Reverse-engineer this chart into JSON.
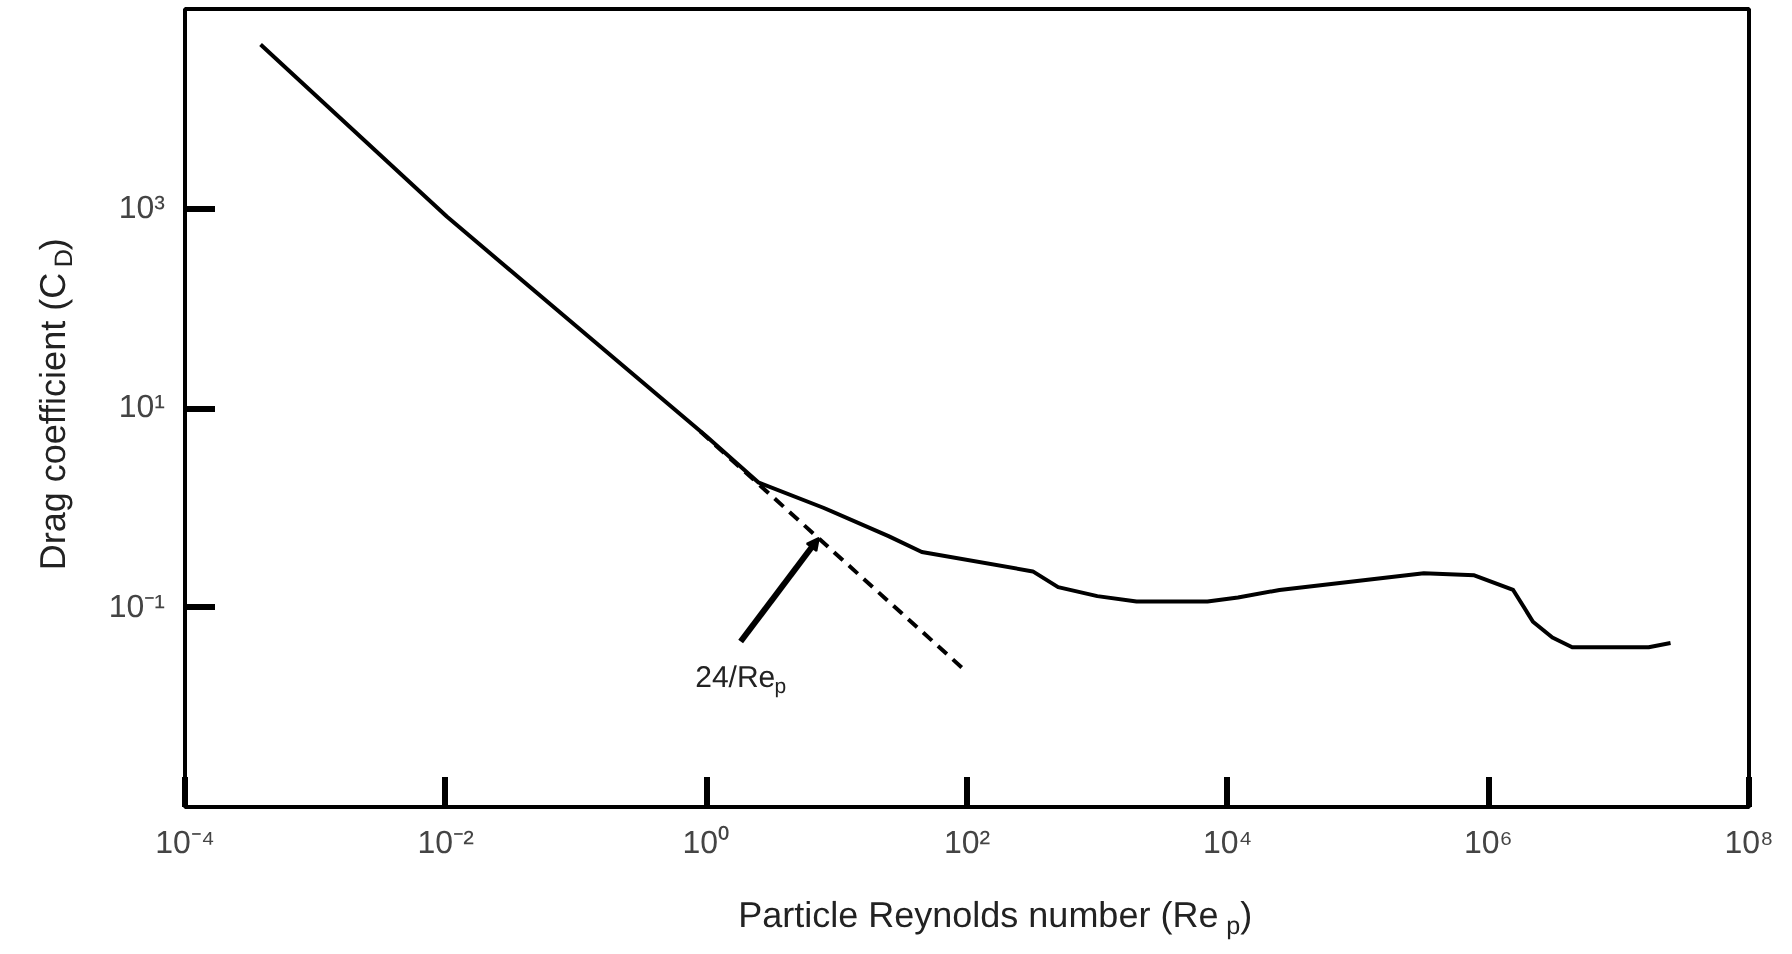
{
  "chart_data": {
    "type": "line",
    "xlabel": "Particle Reynolds number (Re$_{p}$)",
    "ylabel": "Drag coefficient (C$_{D}$)",
    "log": "xy",
    "grid": false,
    "xlim": [
      0.0001,
      100000000
    ],
    "ylim": [
      0.001,
      100000
    ],
    "xticks": [
      {
        "value": 0.0001,
        "label": "10⁻⁴"
      },
      {
        "value": 0.01,
        "label": "10⁻²"
      },
      {
        "value": 1,
        "label": "10⁰"
      },
      {
        "value": 100,
        "label": "10²"
      },
      {
        "value": 10000,
        "label": "10⁴"
      },
      {
        "value": 1000000,
        "label": "10⁶"
      },
      {
        "value": 100000000,
        "label": "10⁸"
      }
    ],
    "yticks": [
      {
        "value": 0.1,
        "label": "10⁻¹"
      },
      {
        "value": 10,
        "label": "10¹"
      },
      {
        "value": 1000,
        "label": "10³"
      }
    ],
    "series": [
      {
        "color": "#000000",
        "line_style": "solid",
        "x": [
          0.00038,
          0.0102,
          1,
          2.5,
          7.9,
          25,
          45,
          320,
          500,
          1000,
          2000,
          7000,
          12000,
          25000,
          320000,
          780000,
          1550000,
          2200000,
          3100000,
          4400000,
          17000000,
          25000000
        ],
        "values": [
          44000,
          830,
          5.2,
          1.8,
          1,
          0.52,
          0.36,
          0.23,
          0.16,
          0.13,
          0.115,
          0.115,
          0.126,
          0.15,
          0.22,
          0.21,
          0.15,
          0.072,
          0.05,
          0.04,
          0.04,
          0.044
        ]
      },
      {
        "color": "#000000",
        "line_style": "dashed",
        "x": [
          0.9,
          98
        ],
        "values": [
          5.8,
          0.023
        ]
      }
    ],
    "annotations": [
      {
        "text": "24/Re$_{p}$",
        "x": 7.3,
        "y": 0.5
      }
    ]
  }
}
